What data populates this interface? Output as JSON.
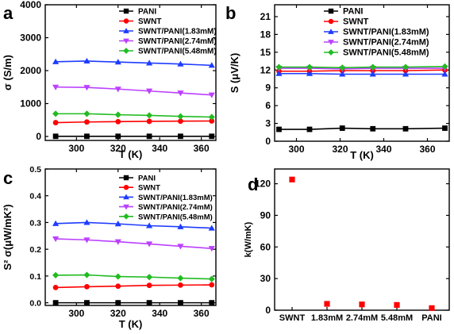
{
  "colors": {
    "PANI": "#000000",
    "SWNT": "#ff0000",
    "SWNT/PANI(1.83mM)": "#1e3cff",
    "SWNT/PANI(2.74mM)": "#bb40ff",
    "SWNT/PANI(5.48mM)": "#22bb22"
  },
  "chart_data": [
    {
      "panel": "a",
      "type": "line",
      "xlabel": "T (K)",
      "ylabel": "σ (S/m)",
      "xlim": [
        285,
        367
      ],
      "ylim": [
        -120,
        4000
      ],
      "xticks": [
        300,
        320,
        340,
        360
      ],
      "yticks": [
        0,
        1000,
        2000,
        3000,
        4000
      ],
      "x": [
        290,
        305,
        320,
        335,
        350,
        365
      ],
      "legend_position": "top-right",
      "series": [
        {
          "name": "PANI",
          "marker": "square",
          "values": [
            5,
            5,
            5,
            5,
            5,
            5
          ]
        },
        {
          "name": "SWNT",
          "marker": "circle",
          "values": [
            420,
            440,
            450,
            460,
            465,
            470
          ]
        },
        {
          "name": "SWNT/PANI(1.83mM)",
          "marker": "triangle-up",
          "values": [
            2270,
            2290,
            2260,
            2230,
            2200,
            2160
          ]
        },
        {
          "name": "SWNT/PANI(2.74mM)",
          "marker": "triangle-down",
          "values": [
            1500,
            1490,
            1440,
            1380,
            1320,
            1260
          ]
        },
        {
          "name": "SWNT/PANI(5.48mM)",
          "marker": "diamond",
          "values": [
            690,
            690,
            660,
            640,
            610,
            590
          ]
        }
      ]
    },
    {
      "panel": "b",
      "type": "line",
      "xlabel": "T (K)",
      "ylabel": "S (μV/K)",
      "xlim": [
        290,
        370
      ],
      "ylim": [
        0,
        23
      ],
      "xticks": [
        300,
        320,
        340,
        360
      ],
      "yticks": [
        0,
        3,
        6,
        9,
        12,
        15,
        18,
        21
      ],
      "x": [
        292,
        306,
        321,
        335,
        350,
        368
      ],
      "legend_position": "top-right",
      "series": [
        {
          "name": "PANI",
          "marker": "square",
          "values": [
            2.0,
            2.0,
            2.2,
            2.1,
            2.1,
            2.2
          ]
        },
        {
          "name": "SWNT",
          "marker": "circle",
          "values": [
            11.8,
            11.8,
            11.9,
            11.9,
            11.9,
            12.0
          ]
        },
        {
          "name": "SWNT/PANI(1.83mM)",
          "marker": "triangle-up",
          "values": [
            11.4,
            11.4,
            11.3,
            11.3,
            11.3,
            11.3
          ]
        },
        {
          "name": "SWNT/PANI(2.74mM)",
          "marker": "triangle-down",
          "values": [
            12.3,
            12.3,
            12.2,
            12.3,
            12.3,
            12.3
          ]
        },
        {
          "name": "SWNT/PANI(5.48mM)",
          "marker": "diamond",
          "values": [
            12.5,
            12.5,
            12.4,
            12.5,
            12.5,
            12.6
          ]
        }
      ]
    },
    {
      "panel": "c",
      "type": "line",
      "xlabel": "T (K)",
      "ylabel": "S² σ(μW/mK²)",
      "xlim": [
        285,
        367
      ],
      "ylim": [
        -0.01,
        0.5
      ],
      "xticks": [
        300,
        320,
        340,
        360
      ],
      "yticks": [
        0.0,
        0.1,
        0.2,
        0.3,
        0.4,
        0.5
      ],
      "x": [
        290,
        305,
        320,
        335,
        350,
        365
      ],
      "legend_position": "top-right",
      "series": [
        {
          "name": "PANI",
          "marker": "square",
          "values": [
            0.0,
            0.0,
            0.0,
            0.0,
            0.0,
            0.0
          ]
        },
        {
          "name": "SWNT",
          "marker": "circle",
          "values": [
            0.057,
            0.06,
            0.062,
            0.065,
            0.066,
            0.067
          ]
        },
        {
          "name": "SWNT/PANI(1.83mM)",
          "marker": "triangle-up",
          "values": [
            0.296,
            0.3,
            0.295,
            0.288,
            0.284,
            0.279
          ]
        },
        {
          "name": "SWNT/PANI(2.74mM)",
          "marker": "triangle-down",
          "values": [
            0.239,
            0.235,
            0.228,
            0.22,
            0.211,
            0.203
          ]
        },
        {
          "name": "SWNT/PANI(5.48mM)",
          "marker": "diamond",
          "values": [
            0.103,
            0.104,
            0.098,
            0.096,
            0.092,
            0.089
          ]
        }
      ]
    },
    {
      "panel": "d",
      "type": "scatter",
      "xlabel": "",
      "ylabel": "k(W/mK)",
      "ylim": [
        0,
        134
      ],
      "yticks": [
        0,
        30,
        60,
        90,
        120
      ],
      "categories": [
        "SWNT",
        "1.83mM",
        "2.74mM",
        "5.48mM",
        "PANI"
      ],
      "values": [
        124,
        6,
        5.5,
        5,
        2
      ],
      "marker": "square",
      "color": "#ff0000"
    }
  ]
}
